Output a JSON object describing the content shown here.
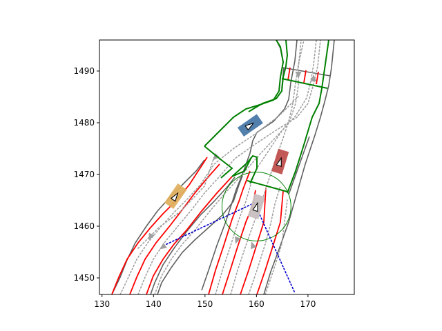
{
  "chart_data": {
    "type": "map",
    "title": "",
    "xlabel": "",
    "ylabel": "",
    "xlim": [
      129.5,
      179
    ],
    "ylim": [
      1446.8,
      1496
    ],
    "x_ticks": [
      "130",
      "140",
      "150",
      "160",
      "170"
    ],
    "y_ticks": [
      "1450",
      "1460",
      "1470",
      "1480",
      "1490"
    ],
    "grid": false,
    "colors": {
      "road_edge": "#606060",
      "lane_boundary": "#ff0000",
      "lane_centerline": "#a0a0a0",
      "route": "#008000",
      "ego_vehicle": "#c8c0c0",
      "agent_blue": "#4a78a8",
      "agent_red": "#c0504d",
      "agent_yellow": "#e0b060",
      "trajectory": "#0000cc",
      "focus_circle": "#008000"
    },
    "vehicles": [
      {
        "name": "ego-vehicle",
        "color": "#c8c0c0",
        "x": 160,
        "y": 1463.8,
        "heading_deg": 73
      },
      {
        "name": "agent-blue",
        "color": "#4a78a8",
        "x": 158.8,
        "y": 1479.5,
        "heading_deg": 35
      },
      {
        "name": "agent-red",
        "color": "#c0504d",
        "x": 164.6,
        "y": 1472.5,
        "heading_deg": 73
      },
      {
        "name": "agent-yellow",
        "color": "#e0b060",
        "x": 144.3,
        "y": 1465.8,
        "heading_deg": 55
      }
    ],
    "focus_circle": {
      "x": 160,
      "y": 1463.8,
      "radius": 6.7
    },
    "planned_path": [
      [
        142.5,
        1456.5
      ],
      [
        159.6,
        1464.5
      ],
      [
        167.5,
        1447
      ]
    ]
  }
}
